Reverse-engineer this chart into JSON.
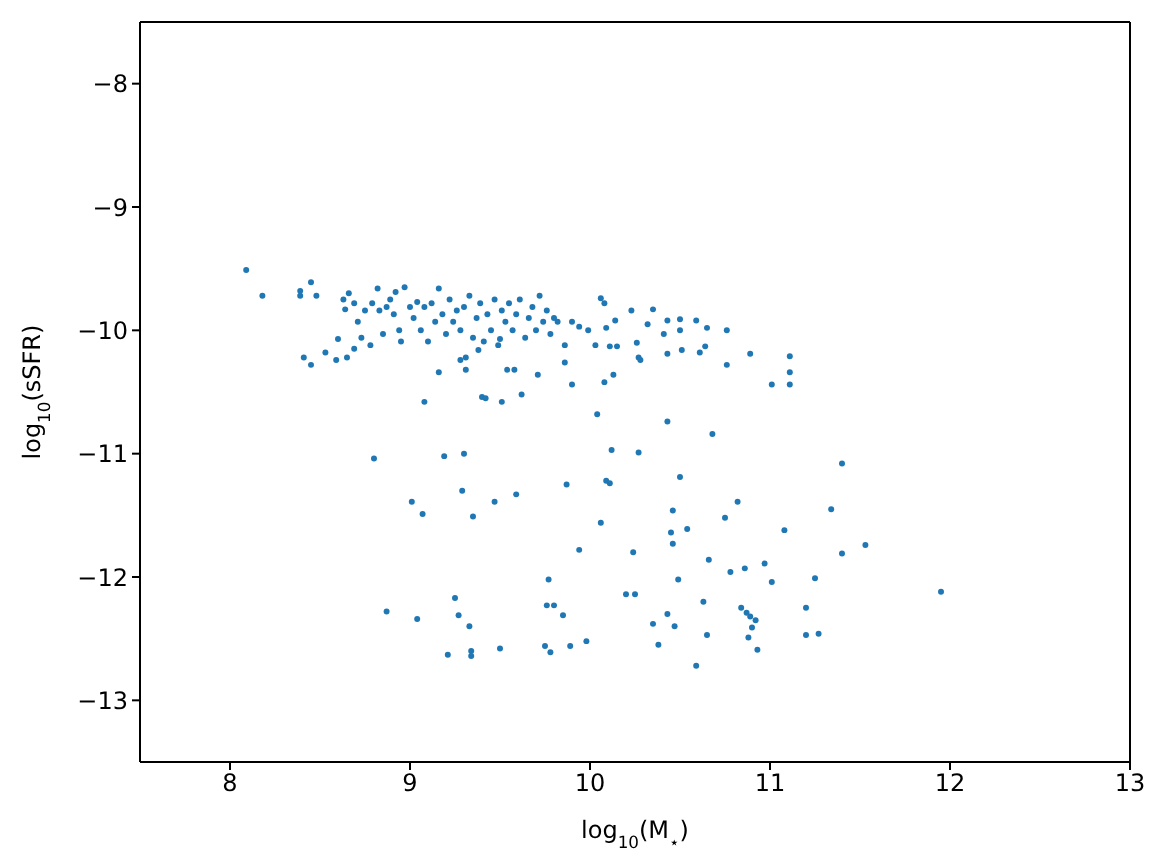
{
  "chart_data": {
    "type": "scatter",
    "xlabel": "log$_{10}$(M$_{⋆}$)",
    "ylabel": "log$_{10}$(sSFR)",
    "xlim": [
      7.5,
      13
    ],
    "xticks": [
      8,
      9,
      10,
      11,
      12,
      13
    ],
    "ylim": [
      -13.5,
      -7.5
    ],
    "yticks": [
      {
        "value": -13,
        "label": "−13"
      },
      {
        "value": -12,
        "label": "−12"
      },
      {
        "value": -11,
        "label": "−11"
      },
      {
        "value": -10,
        "label": "−10"
      },
      {
        "value": -9,
        "label": "−9"
      },
      {
        "value": -8,
        "label": "−8"
      }
    ],
    "marker": "circle",
    "legend": false,
    "series": [
      {
        "color": "#1f77b4",
        "x": [
          8.09,
          8.18,
          8.39,
          8.39,
          8.45,
          8.48,
          8.41,
          8.45,
          8.53,
          8.59,
          8.6,
          8.65,
          8.69,
          9.16,
          9.28,
          9.31,
          9.31,
          9.4,
          9.42,
          9.51,
          9.54,
          9.58,
          9.62,
          9.71,
          9.08,
          9.86,
          9.9,
          10.04,
          10.08,
          10.13,
          10.27,
          10.28,
          10.43,
          10.51,
          10.61,
          10.64,
          10.76,
          10.89,
          11.01,
          11.11,
          11.11,
          11.11,
          10.23,
          10.35,
          10.43,
          10.5,
          10.5,
          10.59,
          10.65,
          10.76,
          10.41,
          10.32,
          10.26,
          10.06,
          10.08,
          10.14,
          10.11,
          10.03,
          9.99,
          9.94,
          10.15,
          9.9,
          9.86,
          10.09,
          8.8,
          9.01,
          9.07,
          9.19,
          9.3,
          9.29,
          9.35,
          9.47,
          9.59,
          9.87,
          9.94,
          10.06,
          10.09,
          10.11,
          10.12,
          10.27,
          10.43,
          10.68,
          10.5,
          10.46,
          10.45,
          10.46,
          10.54,
          10.24,
          10.82,
          10.75,
          10.66,
          10.49,
          10.78,
          10.86,
          10.97,
          11.08,
          11.01,
          11.34,
          11.4,
          11.4,
          11.53,
          11.25,
          11.95,
          11.2,
          11.2,
          11.27,
          8.87,
          9.04,
          9.25,
          9.27,
          9.33,
          9.21,
          9.34,
          9.34,
          9.5,
          9.77,
          9.76,
          9.8,
          9.85,
          9.75,
          9.78,
          9.89,
          9.98,
          10.2,
          10.25,
          10.35,
          10.38,
          10.43,
          10.47,
          10.63,
          10.65,
          10.59,
          10.84,
          10.87,
          10.89,
          10.92,
          10.9,
          10.88,
          10.93,
          8.63,
          8.64,
          8.66,
          8.69,
          8.71,
          8.73,
          8.75,
          8.78,
          8.79,
          8.82,
          8.83,
          8.85,
          8.87,
          8.89,
          8.91,
          8.92,
          8.94,
          8.95,
          8.97,
          9.0,
          9.02,
          9.04,
          9.06,
          9.08,
          9.1,
          9.12,
          9.14,
          9.16,
          9.18,
          9.2,
          9.22,
          9.24,
          9.26,
          9.28,
          9.3,
          9.33,
          9.35,
          9.37,
          9.39,
          9.41,
          9.43,
          9.45,
          9.47,
          9.49,
          9.51,
          9.53,
          9.55,
          9.57,
          9.59,
          9.61,
          9.64,
          9.66,
          9.68,
          9.7,
          9.72,
          9.74,
          9.76,
          9.78,
          9.8,
          9.82,
          9.5,
          9.38
        ],
        "values": [
          -9.51,
          -9.72,
          -9.68,
          -9.72,
          -9.61,
          -9.72,
          -10.22,
          -10.28,
          -10.18,
          -10.24,
          -10.07,
          -10.22,
          -10.15,
          -10.34,
          -10.24,
          -10.22,
          -10.32,
          -10.54,
          -10.55,
          -10.58,
          -10.32,
          -10.32,
          -10.52,
          -10.36,
          -10.58,
          -10.26,
          -10.44,
          -10.68,
          -10.42,
          -10.36,
          -10.22,
          -10.24,
          -10.19,
          -10.16,
          -10.18,
          -10.13,
          -10.28,
          -10.19,
          -10.44,
          -10.21,
          -10.34,
          -10.44,
          -9.84,
          -9.83,
          -9.92,
          -9.91,
          -10.0,
          -9.92,
          -9.98,
          -10.0,
          -10.03,
          -9.95,
          -10.1,
          -9.74,
          -9.78,
          -9.92,
          -10.13,
          -10.12,
          -10.0,
          -9.97,
          -10.13,
          -9.93,
          -10.12,
          -9.98,
          -11.04,
          -11.39,
          -11.49,
          -11.02,
          -11.0,
          -11.3,
          -11.51,
          -11.39,
          -11.33,
          -11.25,
          -11.78,
          -11.56,
          -11.22,
          -11.24,
          -10.97,
          -10.99,
          -10.74,
          -10.84,
          -11.19,
          -11.46,
          -11.64,
          -11.73,
          -11.61,
          -11.8,
          -11.39,
          -11.52,
          -11.86,
          -12.02,
          -11.96,
          -11.93,
          -11.89,
          -11.62,
          -12.04,
          -11.45,
          -11.08,
          -11.81,
          -11.74,
          -12.01,
          -12.12,
          -12.25,
          -12.47,
          -12.46,
          -12.28,
          -12.34,
          -12.17,
          -12.31,
          -12.4,
          -12.63,
          -12.6,
          -12.64,
          -12.58,
          -12.02,
          -12.23,
          -12.23,
          -12.31,
          -12.56,
          -12.61,
          -12.56,
          -12.52,
          -12.14,
          -12.14,
          -12.38,
          -12.55,
          -12.3,
          -12.4,
          -12.2,
          -12.47,
          -12.72,
          -12.25,
          -12.29,
          -12.32,
          -12.35,
          -12.41,
          -12.49,
          -12.59,
          -9.75,
          -9.83,
          -9.7,
          -9.78,
          -9.93,
          -10.06,
          -9.84,
          -10.12,
          -9.78,
          -9.66,
          -9.84,
          -10.03,
          -9.81,
          -9.75,
          -9.87,
          -9.69,
          -10.0,
          -10.09,
          -9.65,
          -9.81,
          -9.9,
          -9.77,
          -10.0,
          -9.81,
          -10.09,
          -9.78,
          -9.93,
          -9.66,
          -9.87,
          -10.03,
          -9.75,
          -9.93,
          -9.84,
          -10.0,
          -9.81,
          -9.72,
          -10.06,
          -9.9,
          -9.78,
          -10.09,
          -9.87,
          -10.0,
          -9.75,
          -10.12,
          -9.84,
          -9.93,
          -9.78,
          -10.0,
          -9.87,
          -9.75,
          -10.06,
          -9.9,
          -9.81,
          -10.0,
          -9.72,
          -9.93,
          -9.84,
          -10.03,
          -9.9,
          -9.93,
          -10.07,
          -10.16
        ]
      }
    ]
  }
}
